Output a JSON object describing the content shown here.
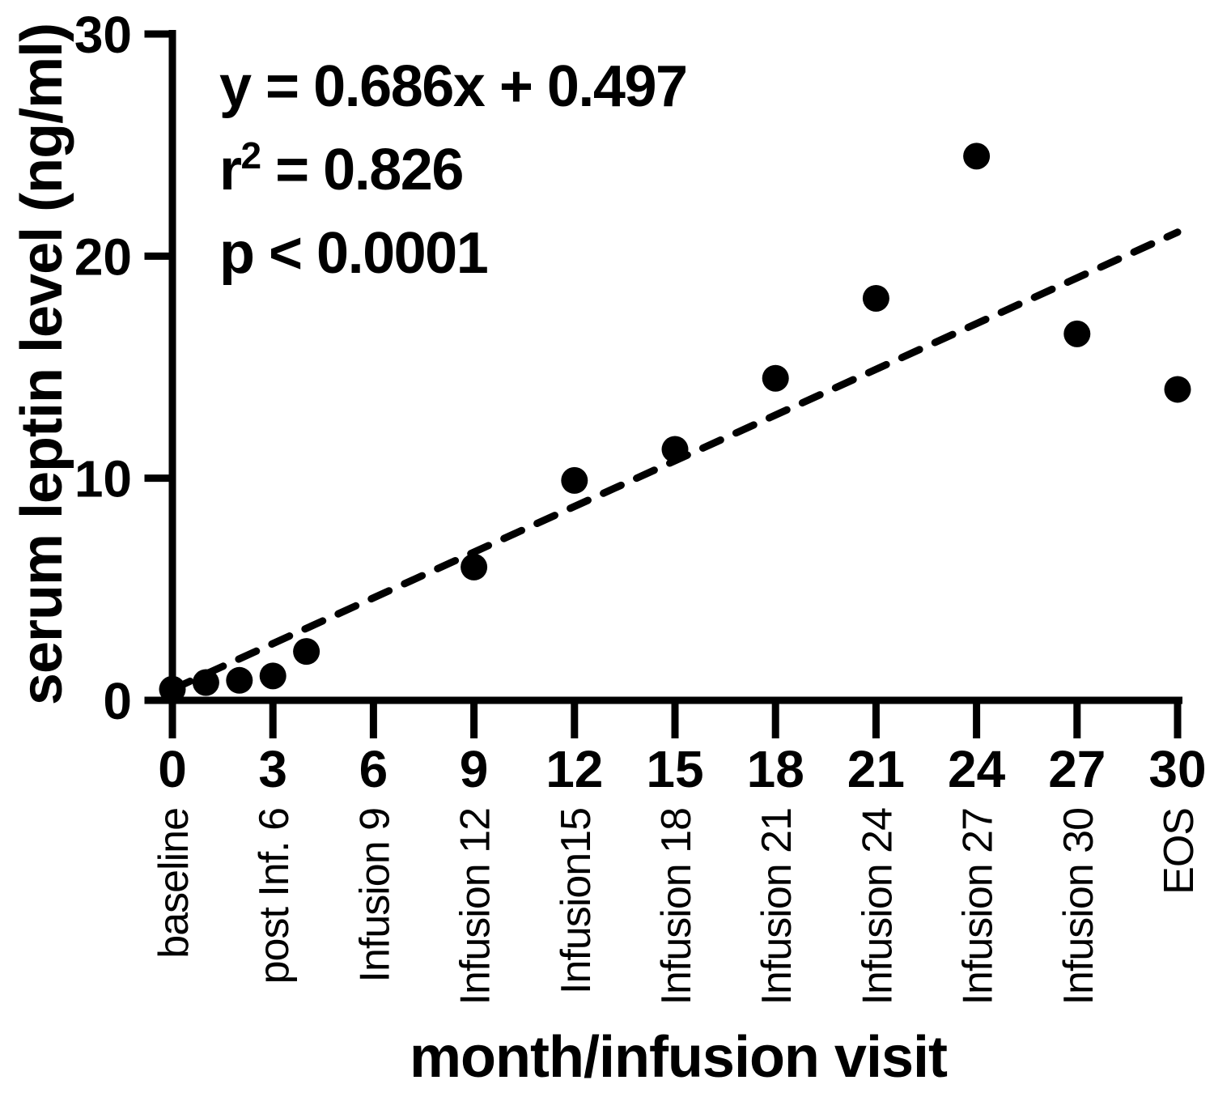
{
  "chart_data": {
    "type": "scatter",
    "title": "",
    "xlabel": "month/infusion visit",
    "ylabel": "serum leptin level (ng/ml)",
    "xlim": [
      0,
      30
    ],
    "ylim": [
      0,
      30
    ],
    "grid": false,
    "legend": false,
    "colors": {
      "points": "#000000",
      "trendline": "#000000",
      "axis": "#000000",
      "text": "#000000",
      "background": "#ffffff"
    },
    "x_ticks": [
      0,
      3,
      6,
      9,
      12,
      15,
      18,
      21,
      24,
      27,
      30
    ],
    "x_tick_visit_labels": [
      "baseline",
      "post Inf. 6",
      "Infusion 9",
      "Infusion 12",
      "Infusion15",
      "Infusion 18",
      "Infusion 21",
      "Infusion 24",
      "Infusion 27",
      "Infusion 30",
      "EOS"
    ],
    "y_ticks": [
      0,
      10,
      20,
      30
    ],
    "points": [
      {
        "x": 0,
        "y": 0.5
      },
      {
        "x": 1,
        "y": 0.8
      },
      {
        "x": 2,
        "y": 0.9
      },
      {
        "x": 3,
        "y": 1.1
      },
      {
        "x": 4,
        "y": 2.2
      },
      {
        "x": 9,
        "y": 6.0
      },
      {
        "x": 12,
        "y": 9.9
      },
      {
        "x": 15,
        "y": 11.3
      },
      {
        "x": 18,
        "y": 14.5
      },
      {
        "x": 21,
        "y": 18.1
      },
      {
        "x": 24,
        "y": 24.5
      },
      {
        "x": 27,
        "y": 16.5
      },
      {
        "x": 30,
        "y": 14.0
      }
    ],
    "trendline": {
      "style": "dashed",
      "slope": 0.686,
      "intercept": 0.497,
      "x_start": 0,
      "x_end": 30
    },
    "stats": {
      "equation": "y = 0.686x + 0.497",
      "r2_base": "r",
      "r2_sup": "2",
      "r2_rest": " = 0.826",
      "p_value": "p < 0.0001"
    }
  }
}
